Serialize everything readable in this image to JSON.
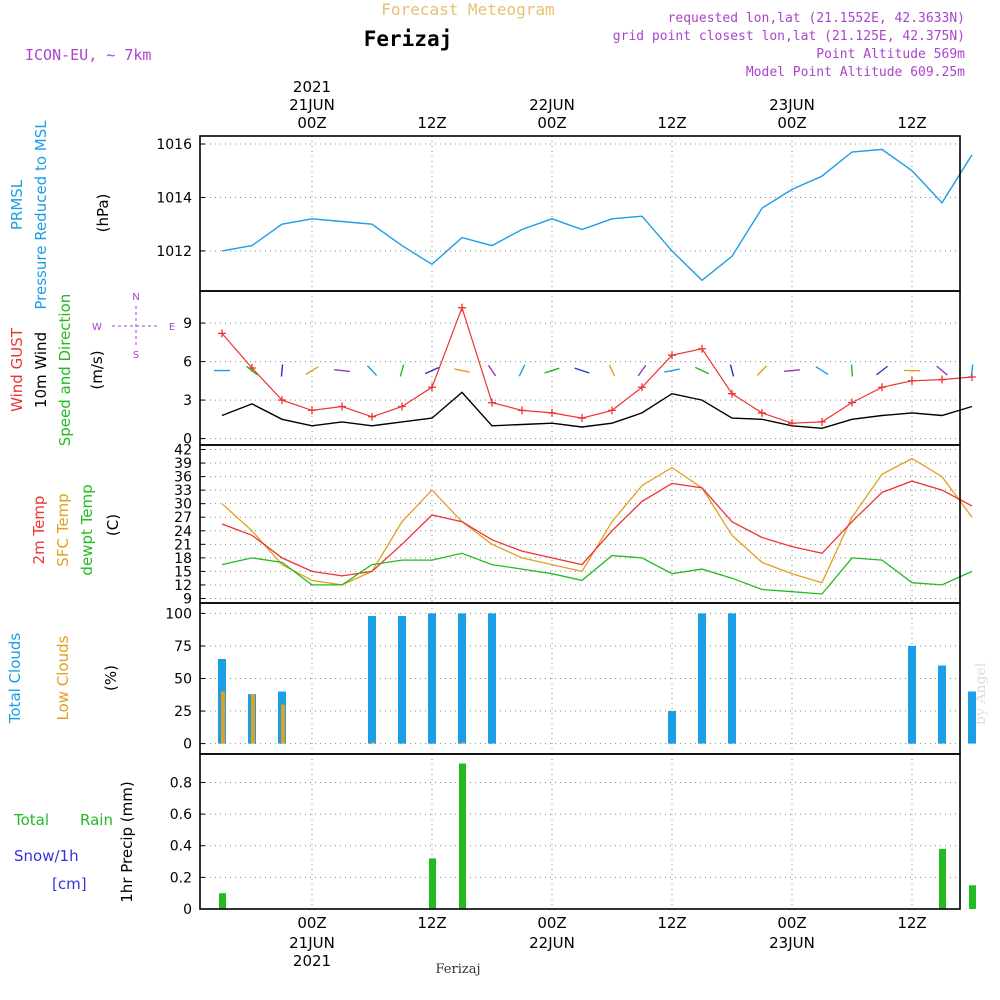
{
  "header": {
    "product": "Forecast Meteogram",
    "place": "Ferizaj",
    "model": "ICON-EU, ~ 7km",
    "requested": "requested lon,lat (21.1552E, 42.3633N)",
    "grid": "grid point closest lon,lat (21.125E, 42.375N)",
    "alt": "Point Altitude 569m",
    "model_alt": "Model Point Altitude 609.25m",
    "footer_place": "Ferizaj",
    "credit": "by Angel"
  },
  "time_axis": {
    "ticks": [
      "00Z",
      "12Z",
      "00Z",
      "12Z",
      "00Z",
      "12Z"
    ],
    "top_dates": [
      "21JUN",
      "22JUN",
      "23JUN"
    ],
    "bottom_dates": [
      "21JUN",
      "22JUN",
      "23JUN"
    ],
    "year": "2021"
  },
  "panels": {
    "pressure": {
      "labels": [
        "PRMSL",
        "Pressure Reduced to MSL"
      ],
      "unit": "(hPa)",
      "ticks": [
        "1012",
        "1014",
        "1016"
      ]
    },
    "wind": {
      "labels": [
        "Wind GUST",
        "10m Wind",
        "Speed and Direction"
      ],
      "unit": "(m/s)",
      "ticks": [
        "0",
        "3",
        "6",
        "9"
      ],
      "compass": [
        "N",
        "W",
        "E",
        "S"
      ]
    },
    "temp": {
      "labels": [
        "2m Temp",
        "SFC Temp",
        "dewpt Temp"
      ],
      "unit": "(C)",
      "ticks": [
        "9",
        "12",
        "15",
        "18",
        "21",
        "24",
        "27",
        "30",
        "33",
        "36",
        "39",
        "42"
      ]
    },
    "clouds": {
      "labels": [
        "Total Clouds",
        "Low Clouds"
      ],
      "unit": "(%)",
      "ticks": [
        "0",
        "25",
        "50",
        "75",
        "100"
      ]
    },
    "precip": {
      "labels": [
        "Total",
        "Rain",
        "Snow/1h",
        "[cm]"
      ],
      "axis_label": "1hr Precip (mm)",
      "ticks": [
        "0",
        "0.2",
        "0.4",
        "0.6",
        "0.8"
      ]
    }
  },
  "colors": {
    "pressure": "#1a9ee6",
    "gust": "#ee3333",
    "wind": "#000000",
    "sfc": "#e0a020",
    "dewpt": "#22bb22",
    "total_cloud": "#1a9ee6",
    "low_cloud": "#e0a020",
    "rain": "#22bb22",
    "snow": "#3333dd",
    "title": "#e8c070",
    "meta": "#aa44cc"
  },
  "chart_data": {
    "type": "meteogram",
    "start": "2021-06-20 15Z",
    "step_hours": 3,
    "x": [
      "2021-06-20 15Z",
      "2021-06-20 18Z",
      "2021-06-20 21Z",
      "2021-06-21 00Z",
      "2021-06-21 03Z",
      "2021-06-21 06Z",
      "2021-06-21 09Z",
      "2021-06-21 12Z",
      "2021-06-21 15Z",
      "2021-06-21 18Z",
      "2021-06-21 21Z",
      "2021-06-22 00Z",
      "2021-06-22 03Z",
      "2021-06-22 06Z",
      "2021-06-22 09Z",
      "2021-06-22 12Z",
      "2021-06-22 15Z",
      "2021-06-22 18Z",
      "2021-06-22 21Z",
      "2021-06-23 00Z",
      "2021-06-23 03Z",
      "2021-06-23 06Z",
      "2021-06-23 09Z",
      "2021-06-23 12Z",
      "2021-06-23 15Z",
      "2021-06-23 18Z"
    ],
    "series": [
      {
        "name": "PRMSL",
        "panel": "pressure",
        "values": [
          1012.0,
          1012.2,
          1013.0,
          1013.2,
          1013.1,
          1013.0,
          1012.2,
          1011.5,
          1012.5,
          1012.2,
          1012.8,
          1013.2,
          1012.8,
          1013.2,
          1013.3,
          1012.0,
          1010.9,
          1011.8,
          1013.6,
          1014.3,
          1014.8,
          1015.7,
          1015.8,
          1015.0,
          1013.8,
          1015.6
        ],
        "ylim": [
          1010.5,
          1016.3
        ]
      },
      {
        "name": "Wind GUST",
        "panel": "wind",
        "values": [
          8.2,
          5.5,
          3.0,
          2.2,
          2.5,
          1.7,
          2.5,
          4.0,
          10.2,
          2.8,
          2.2,
          2.0,
          1.6,
          2.2,
          4.0,
          6.5,
          7.0,
          3.5,
          2.0,
          1.2,
          1.3,
          2.8,
          4.0,
          4.5,
          4.6,
          4.8
        ],
        "ylim": [
          -0.5,
          11.5
        ]
      },
      {
        "name": "10m Wind",
        "panel": "wind",
        "values": [
          1.8,
          2.7,
          1.5,
          1.0,
          1.3,
          1.0,
          1.3,
          1.6,
          3.6,
          1.0,
          1.1,
          1.2,
          0.9,
          1.2,
          2.0,
          3.5,
          3.0,
          1.6,
          1.5,
          1.0,
          0.8,
          1.5,
          1.8,
          2.0,
          1.8,
          2.5
        ],
        "ylim": [
          -0.5,
          11.5
        ]
      },
      {
        "name": "2m Temp",
        "panel": "temp",
        "values": [
          25.5,
          23.0,
          18.0,
          15.0,
          14.0,
          15.0,
          21.0,
          27.5,
          26.0,
          22.0,
          19.5,
          18.0,
          16.5,
          24.0,
          30.5,
          34.5,
          33.5,
          26.0,
          22.5,
          20.5,
          19.0,
          26.0,
          32.5,
          35.0,
          33.0,
          29.5
        ],
        "ylim": [
          8,
          43
        ]
      },
      {
        "name": "SFC Temp",
        "panel": "temp",
        "values": [
          30.0,
          24.0,
          16.5,
          13.0,
          12.0,
          15.0,
          26.0,
          33.0,
          26.0,
          21.0,
          18.0,
          16.5,
          15.0,
          26.0,
          34.0,
          38.0,
          33.5,
          23.0,
          17.0,
          14.5,
          12.5,
          27.0,
          36.5,
          40.0,
          36.0,
          27.0
        ],
        "ylim": [
          8,
          43
        ]
      },
      {
        "name": "dewpt Temp",
        "panel": "temp",
        "values": [
          16.5,
          18.0,
          17.0,
          12.0,
          12.0,
          16.5,
          17.5,
          17.5,
          19.0,
          16.5,
          15.5,
          14.5,
          13.0,
          18.5,
          18.0,
          14.5,
          15.5,
          13.5,
          11.0,
          10.5,
          10.0,
          18.0,
          17.5,
          12.5,
          12.0,
          15.0
        ],
        "ylim": [
          8,
          43
        ]
      },
      {
        "name": "Total Clouds",
        "panel": "clouds",
        "values": [
          65,
          38,
          40,
          0,
          0,
          98,
          98,
          100,
          100,
          100,
          0,
          0,
          0,
          0,
          0,
          25,
          100,
          100,
          0,
          0,
          0,
          0,
          0,
          75,
          60,
          40
        ],
        "ylim": [
          -8,
          108
        ]
      },
      {
        "name": "Low Clouds",
        "panel": "clouds",
        "values": [
          40,
          38,
          30,
          0,
          0,
          1,
          0,
          0,
          1,
          0,
          0,
          0,
          0,
          0,
          0,
          0,
          0,
          0,
          0,
          0,
          0,
          0,
          0,
          0,
          0,
          0
        ],
        "ylim": [
          -8,
          108
        ]
      },
      {
        "name": "Total Rain",
        "panel": "precip",
        "values": [
          0.1,
          0,
          0,
          0,
          0,
          0,
          0,
          0.32,
          0.92,
          0,
          0,
          0,
          0,
          0,
          0,
          0,
          0,
          0,
          0,
          0,
          0,
          0,
          0,
          0,
          0.38,
          0.15
        ],
        "ylim": [
          0,
          0.98
        ]
      }
    ],
    "xlabel": "",
    "grid": true
  }
}
